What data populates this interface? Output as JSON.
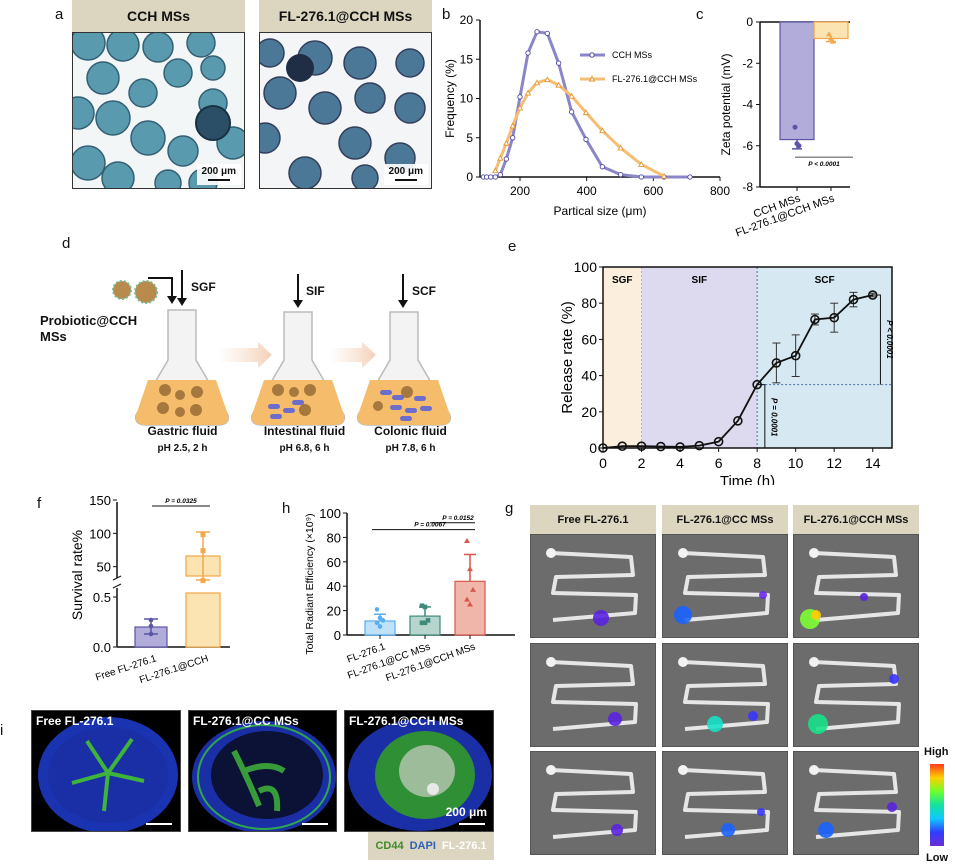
{
  "panels": {
    "a": {
      "letter": "a",
      "images": [
        {
          "title": "CCH MSs",
          "scale_label": "200 μm"
        },
        {
          "title": "FL-276.1@CCH MSs",
          "scale_label": "200 μm"
        }
      ]
    },
    "d": {
      "letter": "d",
      "input_label_line1": "Probiotic@CCH",
      "input_label_line2": "MSs",
      "stages": [
        {
          "arrow_label": "SGF",
          "fluid": "Gastric fluid",
          "condition": "pH 2.5, 2 h"
        },
        {
          "arrow_label": "SIF",
          "fluid": "Intestinal fluid",
          "condition": "pH 6.8, 6 h"
        },
        {
          "arrow_label": "SCF",
          "fluid": "Colonic fluid",
          "condition": "pH 7.8, 6 h"
        }
      ]
    },
    "g": {
      "letter": "g",
      "columns": [
        "Free FL-276.1",
        "FL-276.1@CC MSs",
        "FL-276.1@CCH MSs"
      ],
      "colorbar_high": "High",
      "colorbar_low": "Low"
    },
    "i": {
      "letter": "i",
      "images": [
        "Free FL-276.1",
        "FL-276.1@CC MSs",
        "FL-276.1@CCH MSs"
      ],
      "scale_label": "200 μm",
      "legend": [
        {
          "label": "CD44",
          "color": "#3f8a2a"
        },
        {
          "label": "DAPI",
          "color": "#2f5fb8"
        },
        {
          "label": "FL-276.1",
          "color": "#ffffff"
        }
      ]
    }
  },
  "chart_data": [
    {
      "id": "b",
      "letter": "b",
      "type": "line",
      "title": "",
      "xlabel": "Partical size (μm)",
      "ylabel": "Frequency (%)",
      "xlim": [
        80,
        800
      ],
      "ylim": [
        0,
        20
      ],
      "xticks": [
        200,
        400,
        600,
        800
      ],
      "yticks": [
        0,
        5,
        10,
        15,
        20
      ],
      "legend_position": "top-right",
      "series": [
        {
          "name": "CCH MSs",
          "color": "#8a86c8",
          "marker": "circle",
          "x": [
            90,
            100,
            112,
            126,
            141,
            159,
            178,
            200,
            224,
            251,
            282,
            316,
            355,
            398,
            447,
            502,
            564,
            632,
            710
          ],
          "y": [
            0,
            0,
            0,
            0,
            0.3,
            2.3,
            5.0,
            10.2,
            15.8,
            18.5,
            18.3,
            14.5,
            8.3,
            4.8,
            1.3,
            0.3,
            0,
            0,
            0
          ]
        },
        {
          "name": "FL-276.1@CCH MSs",
          "color": "#f5be74",
          "marker": "triangle",
          "x": [
            126,
            141,
            159,
            178,
            200,
            224,
            251,
            282,
            316,
            355,
            398,
            447,
            502,
            564,
            632
          ],
          "y": [
            0.8,
            2.4,
            4.3,
            6.5,
            8.8,
            10.7,
            12.0,
            12.4,
            11.7,
            10.3,
            8.2,
            5.9,
            3.7,
            1.6,
            0.1
          ]
        }
      ]
    },
    {
      "id": "c",
      "letter": "c",
      "type": "bar",
      "title": "",
      "xlabel": "",
      "ylabel": "Zeta potential (mV)",
      "ylim": [
        -8,
        0
      ],
      "yticks": [
        0,
        -2,
        -4,
        -6,
        -8
      ],
      "categories": [
        "CCH MSs",
        "FL-276.1@CCH MSs"
      ],
      "values": [
        -5.7,
        -0.8
      ],
      "errors": [
        0.45,
        0.15
      ],
      "points": [
        [
          -5.1,
          -5.9,
          -6.0
        ],
        [
          -0.6,
          -0.8,
          -0.95
        ]
      ],
      "colors": [
        "#b2acda",
        "#fbe3b2"
      ],
      "edge_colors": [
        "#5b55a6",
        "#f2a84a"
      ],
      "annotation": "P < 0.0001"
    },
    {
      "id": "e",
      "letter": "e",
      "type": "line",
      "title": "",
      "xlabel": "Time (h)",
      "ylabel": "Release rate (%)",
      "xlim": [
        0,
        15
      ],
      "ylim": [
        0,
        100
      ],
      "xticks": [
        0,
        2,
        4,
        6,
        8,
        10,
        12,
        14
      ],
      "yticks": [
        0,
        20,
        40,
        60,
        80,
        100
      ],
      "regions": [
        {
          "label": "SGF",
          "from": 0,
          "to": 2,
          "color": "#fbeedd"
        },
        {
          "label": "SIF",
          "from": 2,
          "to": 8,
          "color": "#dddaef"
        },
        {
          "label": "SCF",
          "from": 8,
          "to": 15,
          "color": "#d6e8f2"
        }
      ],
      "series": [
        {
          "name": "Release",
          "color": "#111111",
          "x": [
            0,
            1,
            2,
            3,
            4,
            5,
            6,
            7,
            8,
            9,
            10,
            11,
            12,
            13,
            14
          ],
          "y": [
            0,
            1,
            1,
            0.8,
            0.6,
            1.3,
            3.5,
            15,
            35,
            47,
            51,
            71,
            72,
            82,
            84.5
          ],
          "err": [
            0,
            0,
            0,
            0,
            0,
            0,
            0,
            0,
            0,
            11,
            11.5,
            3,
            8,
            4,
            1
          ]
        }
      ],
      "annotations": [
        "P = 0.0001",
        "P < 0.0001"
      ]
    },
    {
      "id": "f",
      "letter": "f",
      "type": "bar",
      "title": "",
      "xlabel": "",
      "ylabel": "Survival rate%",
      "axis_break": true,
      "yticks_lower": [
        "0.0",
        "0.5"
      ],
      "yticks_upper": [
        "50",
        "100",
        "150"
      ],
      "categories": [
        "Free FL-276.1",
        "FL-276.1@CCH"
      ],
      "values": [
        0.2,
        66
      ],
      "errors": [
        0.08,
        36
      ],
      "points": [
        [
          0.27,
          0.21,
          0.13
        ],
        [
          98,
          74,
          29
        ]
      ],
      "colors": [
        "#b2acda",
        "#fbe3b2"
      ],
      "edge_colors": [
        "#5b55a6",
        "#f2a84a"
      ],
      "annotation": "P = 0.0325"
    },
    {
      "id": "h",
      "letter": "h",
      "type": "bar",
      "title": "",
      "xlabel": "",
      "ylabel": "Total Radiant Efficiency (×10⁹)",
      "ylim": [
        0,
        100
      ],
      "yticks": [
        0,
        20,
        40,
        60,
        80,
        100
      ],
      "categories": [
        "FL-276.1",
        "FL-276.1@CC MSs",
        "FL-276.1@CCH MSs"
      ],
      "values": [
        11.5,
        15.5,
        44
      ],
      "errors": [
        5.5,
        7.5,
        22
      ],
      "points": [
        [
          21,
          14,
          12,
          10,
          7
        ],
        [
          24,
          23,
          12,
          10,
          10
        ],
        [
          77,
          54,
          37,
          29,
          25
        ]
      ],
      "colors": [
        "#bfe2f8",
        "#b7d5cc",
        "#f1b6aa"
      ],
      "edge_colors": [
        "#58aef0",
        "#3e8a7b",
        "#d9574a"
      ],
      "annotations": [
        "P = 0.0152",
        "P = 0.0067"
      ]
    }
  ]
}
